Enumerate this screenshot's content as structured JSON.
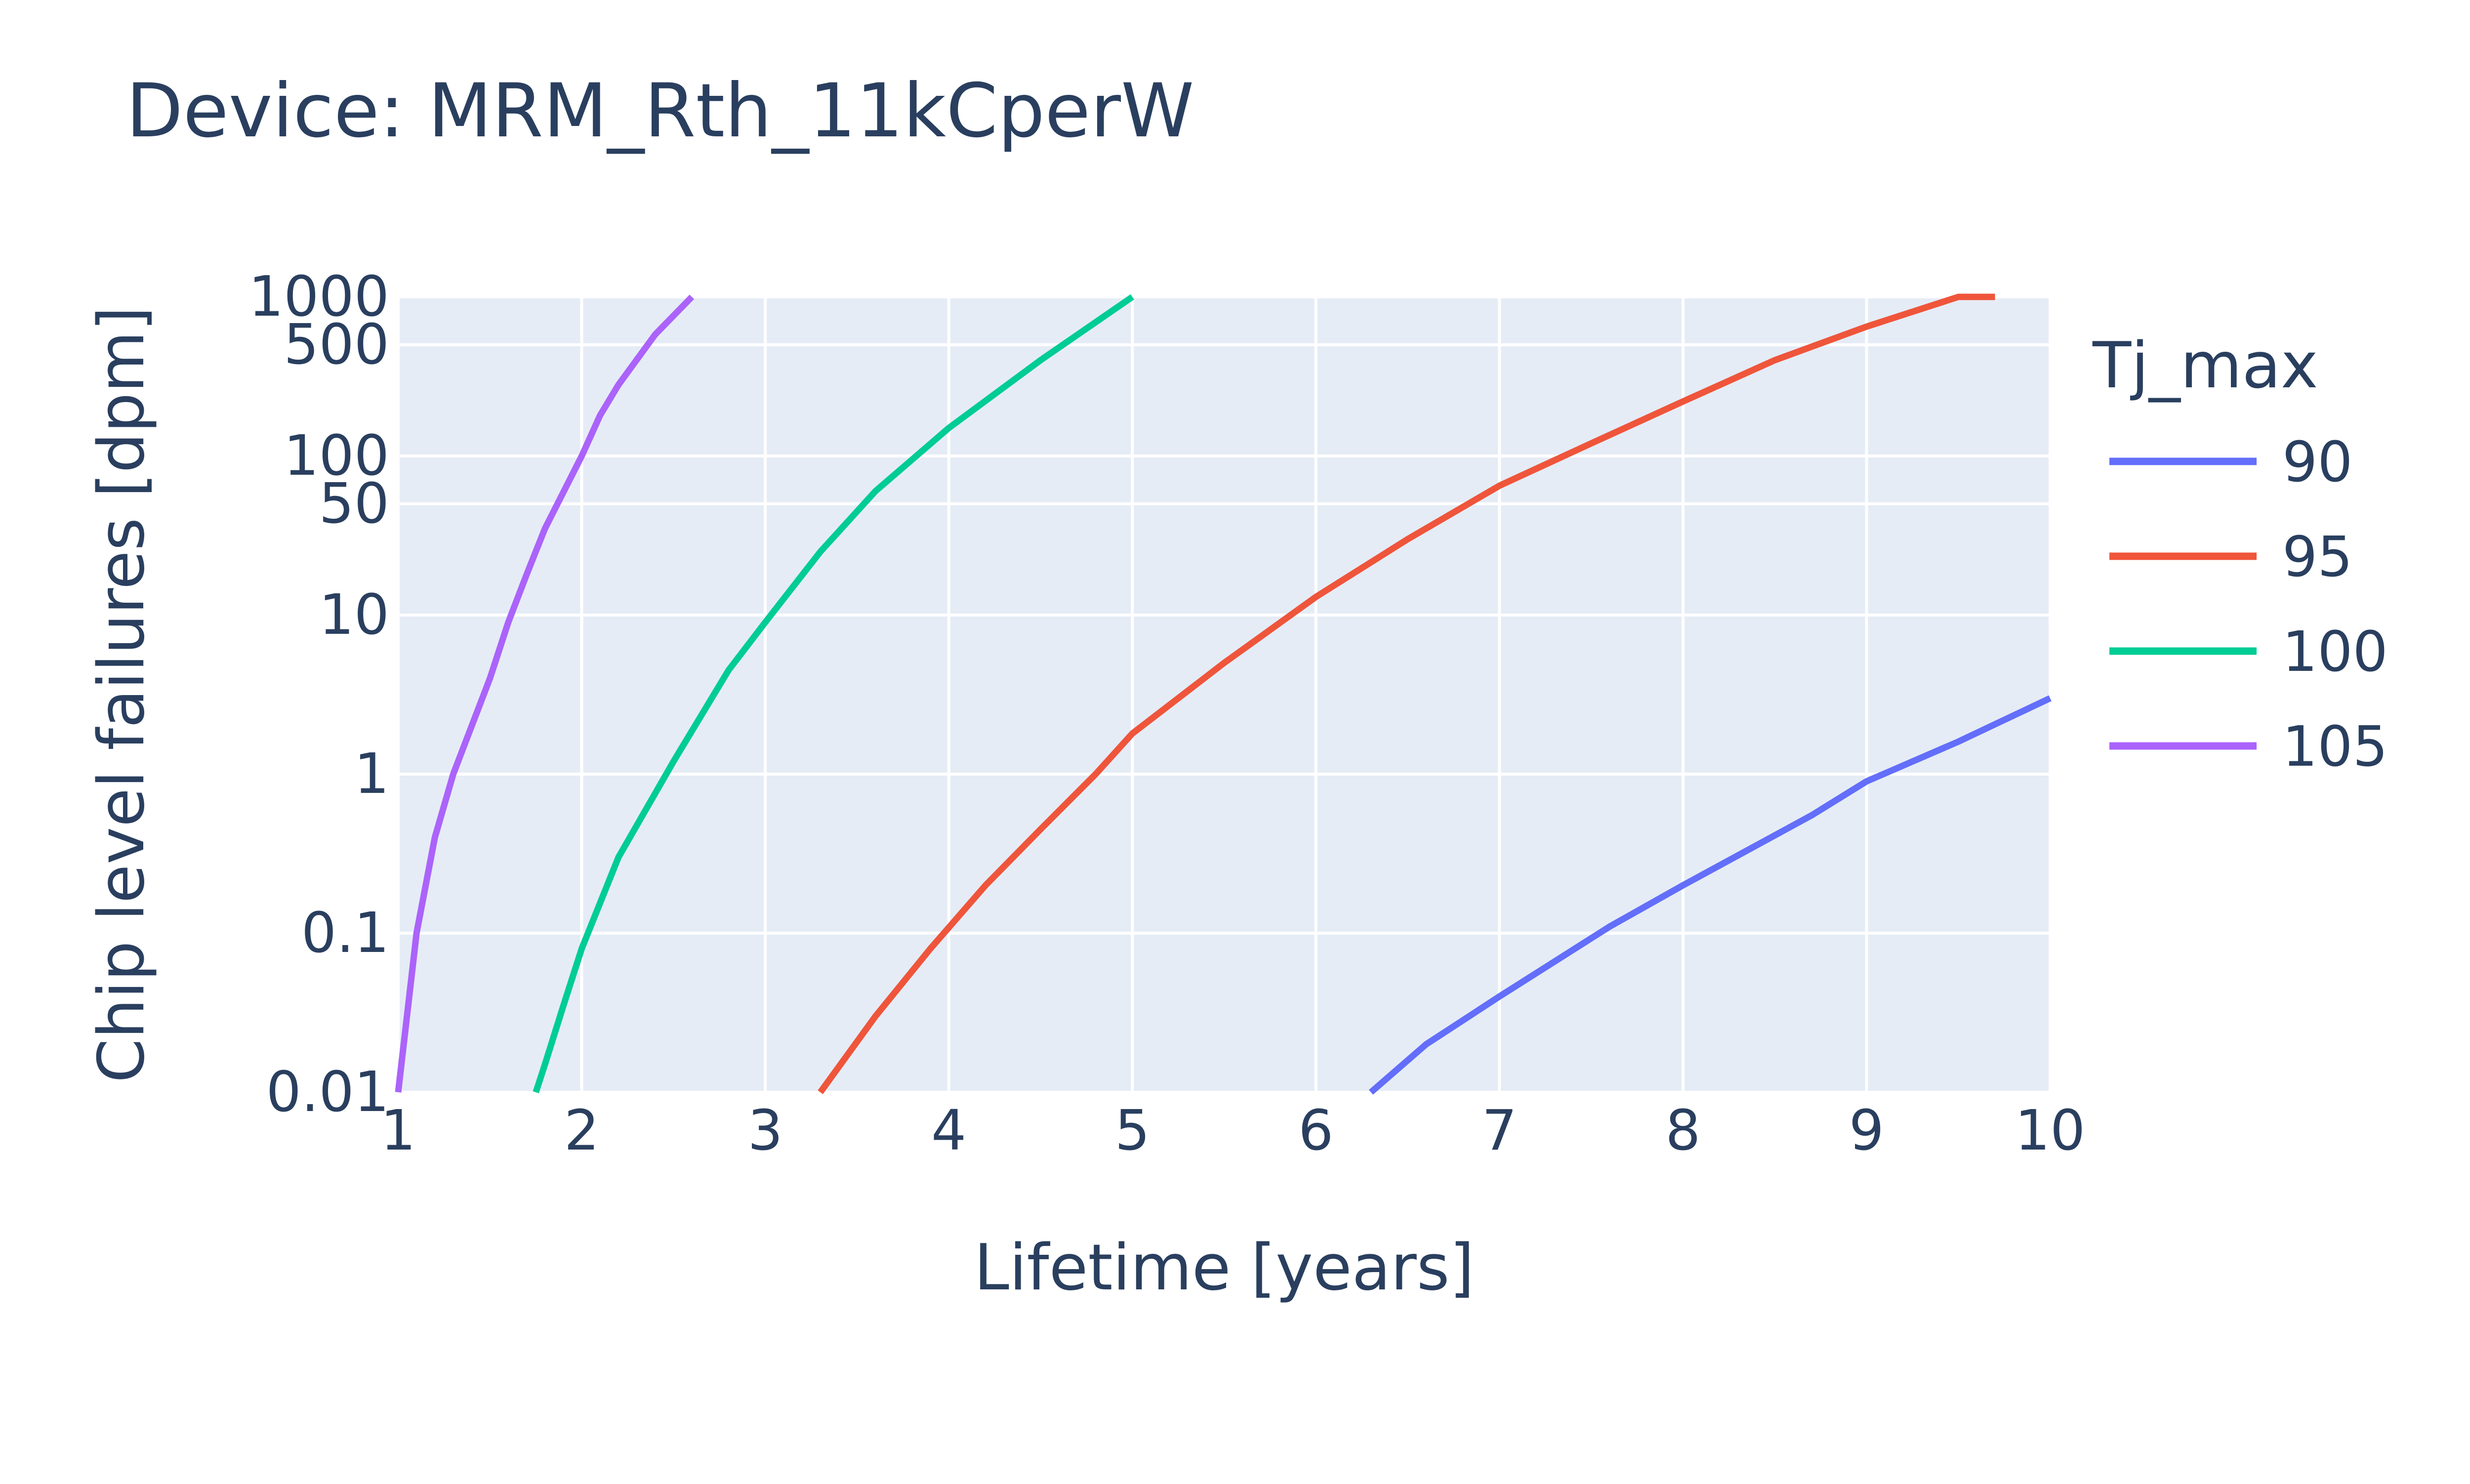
{
  "chart_data": {
    "type": "line",
    "title": "Device: MRM_Rth_11kCperW",
    "xlabel": "Lifetime [years]",
    "ylabel": "Chip level failures [dpm]",
    "xlim": [
      1,
      10
    ],
    "ylim": [
      0.01,
      1000
    ],
    "y_scale": "log",
    "x_ticks": [
      1,
      2,
      3,
      4,
      5,
      6,
      7,
      8,
      9,
      10
    ],
    "x_tick_labels": [
      "1",
      "2",
      "3",
      "4",
      "5",
      "6",
      "7",
      "8",
      "9",
      "10"
    ],
    "y_ticks": [
      0.01,
      0.1,
      1,
      10,
      50,
      100,
      500,
      1000
    ],
    "y_tick_labels": [
      "0.01",
      "0.1",
      "1",
      "10",
      "50",
      "100",
      "500",
      "1000"
    ],
    "grid": true,
    "legend": {
      "title": "Tj_max",
      "position": "right"
    },
    "series": [
      {
        "name": "90",
        "color": "#636efa",
        "x": [
          6.3,
          6.6,
          7.0,
          7.6,
          8.0,
          8.7,
          9.0,
          9.5,
          10.0
        ],
        "y": [
          0.01,
          0.02,
          0.04,
          0.11,
          0.2,
          0.55,
          0.9,
          1.6,
          3.0
        ]
      },
      {
        "name": "95",
        "color": "#ef553b",
        "x": [
          3.3,
          3.6,
          3.9,
          4.2,
          4.5,
          4.8,
          5.0,
          5.5,
          6.0,
          6.5,
          7.0,
          7.5,
          8.0,
          8.5,
          9.0,
          9.5,
          9.7
        ],
        "y": [
          0.01,
          0.03,
          0.08,
          0.2,
          0.45,
          1.0,
          1.8,
          5.0,
          13,
          30,
          65,
          120,
          220,
          400,
          650,
          1000,
          1000
        ]
      },
      {
        "name": "100",
        "color": "#00cc96",
        "x": [
          1.75,
          1.8,
          1.9,
          2.0,
          2.2,
          2.5,
          2.8,
          3.0,
          3.3,
          3.6,
          4.0,
          4.5,
          5.0
        ],
        "y": [
          0.01,
          0.015,
          0.035,
          0.08,
          0.3,
          1.2,
          4.5,
          9,
          25,
          60,
          150,
          400,
          1000
        ]
      },
      {
        "name": "105",
        "color": "#ab63fa",
        "x": [
          1.0,
          1.1,
          1.2,
          1.3,
          1.5,
          1.6,
          1.7,
          1.8,
          2.0,
          2.1,
          2.2,
          2.4,
          2.6
        ],
        "y": [
          0.01,
          0.1,
          0.4,
          1.0,
          4,
          9,
          18,
          35,
          100,
          180,
          280,
          580,
          1000
        ]
      }
    ]
  }
}
